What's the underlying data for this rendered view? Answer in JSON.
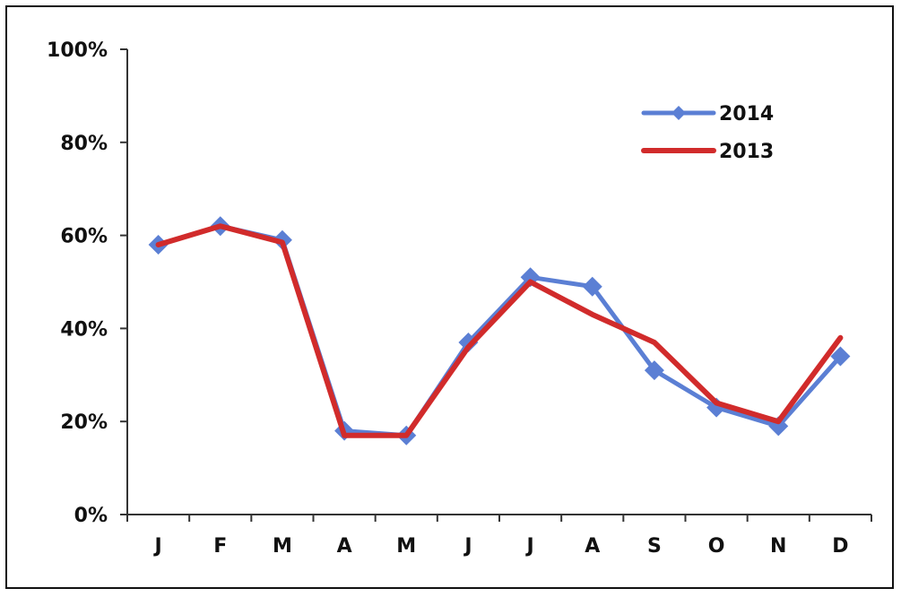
{
  "chart_data": {
    "type": "line",
    "title": "",
    "xlabel": "",
    "ylabel": "",
    "categories": [
      "J",
      "F",
      "M",
      "A",
      "M",
      "J",
      "J",
      "A",
      "S",
      "O",
      "N",
      "D"
    ],
    "ylim": [
      0,
      100
    ],
    "yticks": [
      0,
      20,
      40,
      60,
      80,
      100
    ],
    "ytick_labels": [
      "0%",
      "20%",
      "40%",
      "60%",
      "80%",
      "100%"
    ],
    "grid": false,
    "legend_position": "top-right",
    "series": [
      {
        "name": "2014",
        "color": "#5b7fd4",
        "marker": "diamond",
        "values": [
          58,
          62,
          59,
          18,
          17,
          37,
          51,
          49,
          31,
          23,
          19,
          34
        ]
      },
      {
        "name": "2013",
        "color": "#d12b2b",
        "marker": "none",
        "values": [
          58,
          62,
          58.5,
          17,
          17,
          36,
          50,
          43,
          37,
          24,
          20,
          38
        ]
      }
    ]
  }
}
